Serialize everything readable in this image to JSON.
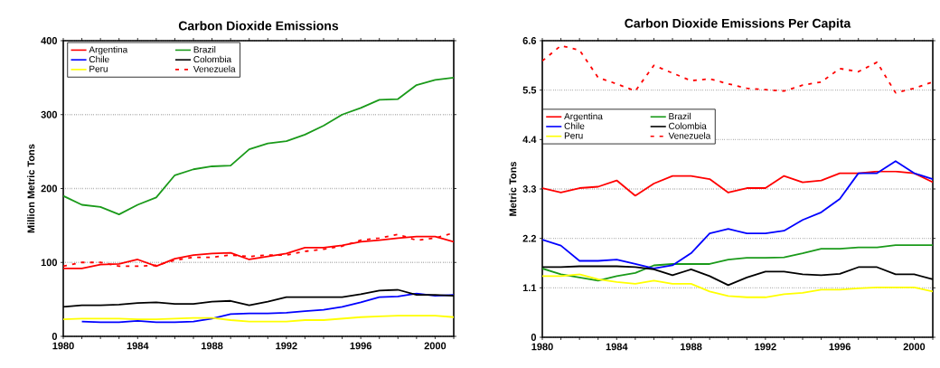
{
  "chart_data": [
    {
      "type": "line",
      "title": "Carbon Dioxide Emissions",
      "ylabel": "Million Metric Tons",
      "x": [
        1980,
        1981,
        1982,
        1983,
        1984,
        1985,
        1986,
        1987,
        1988,
        1989,
        1990,
        1991,
        1992,
        1993,
        1994,
        1995,
        1996,
        1997,
        1998,
        1999,
        2000,
        2001
      ],
      "series": [
        {
          "name": "Argentina",
          "color": "#ff0000",
          "values": [
            92,
            92,
            97,
            98,
            104,
            95,
            105,
            110,
            112,
            113,
            104,
            108,
            112,
            120,
            120,
            123,
            128,
            130,
            133,
            135,
            135,
            128
          ]
        },
        {
          "name": "Brazil",
          "color": "#1a9a1a",
          "values": [
            190,
            178,
            175,
            165,
            178,
            188,
            218,
            226,
            230,
            231,
            253,
            261,
            264,
            273,
            285,
            300,
            309,
            320,
            321,
            340,
            347,
            350
          ]
        },
        {
          "name": "Chile",
          "color": "#0000ff",
          "values": [
            null,
            20,
            19,
            19,
            21,
            19,
            19,
            20,
            24,
            30,
            31,
            31,
            32,
            34,
            36,
            40,
            46,
            53,
            54,
            58,
            55,
            56
          ]
        },
        {
          "name": "Colombia",
          "color": "#000000",
          "values": [
            40,
            42,
            42,
            43,
            45,
            46,
            44,
            44,
            47,
            48,
            42,
            47,
            53,
            53,
            53,
            53,
            57,
            62,
            63,
            56,
            56,
            55
          ]
        },
        {
          "name": "Peru",
          "color": "#ffff00",
          "values": [
            23,
            24,
            24,
            24,
            23,
            23,
            24,
            25,
            25,
            22,
            20,
            20,
            20,
            22,
            22,
            24,
            26,
            27,
            28,
            28,
            28,
            26
          ]
        },
        {
          "name": "Venezuela",
          "color": "#ff0000",
          "line_style": "dashed",
          "values": [
            95,
            100,
            100,
            95,
            95,
            96,
            103,
            107,
            107,
            110,
            108,
            110,
            110,
            115,
            118,
            122,
            130,
            133,
            138,
            130,
            133,
            140
          ]
        }
      ],
      "xlim": [
        1980,
        2001
      ],
      "ylim": [
        0,
        400
      ],
      "xticks": [
        1980,
        {
          "value": 1981,
          "label": null
        },
        {
          "value": 1982,
          "label": null
        },
        {
          "value": 1983,
          "label": null
        },
        1984,
        {
          "value": 1985,
          "label": null
        },
        {
          "value": 1986,
          "label": null
        },
        {
          "value": 1987,
          "label": null
        },
        1988,
        {
          "value": 1989,
          "label": null
        },
        {
          "value": 1990,
          "label": null
        },
        {
          "value": 1991,
          "label": null
        },
        1992,
        {
          "value": 1993,
          "label": null
        },
        {
          "value": 1994,
          "label": null
        },
        {
          "value": 1995,
          "label": null
        },
        1996,
        {
          "value": 1997,
          "label": null
        },
        {
          "value": 1998,
          "label": null
        },
        {
          "value": 1999,
          "label": null
        },
        2000,
        {
          "value": 2001,
          "label": null
        }
      ],
      "yticks": [
        0,
        100,
        200,
        300,
        400
      ],
      "grid": "y",
      "legend": "top left"
    },
    {
      "type": "line",
      "title": "Carbon Dioxide Emissions Per Capita",
      "ylabel": "Metric Tons",
      "x": [
        1980,
        1981,
        1982,
        1983,
        1984,
        1985,
        1986,
        1987,
        1988,
        1989,
        1990,
        1991,
        1992,
        1993,
        1994,
        1995,
        1996,
        1997,
        1998,
        1999,
        2000,
        2001
      ],
      "series": [
        {
          "name": "Argentina",
          "color": "#ff0000",
          "values": [
            3.32,
            3.22,
            3.32,
            3.35,
            3.49,
            3.15,
            3.42,
            3.59,
            3.59,
            3.52,
            3.22,
            3.32,
            3.32,
            3.59,
            3.45,
            3.49,
            3.65,
            3.65,
            3.69,
            3.69,
            3.65,
            3.45
          ]
        },
        {
          "name": "Brazil",
          "color": "#1a9a1a",
          "values": [
            1.53,
            1.4,
            1.33,
            1.26,
            1.36,
            1.43,
            1.6,
            1.63,
            1.63,
            1.63,
            1.73,
            1.77,
            1.77,
            1.78,
            1.87,
            1.97,
            1.97,
            2.0,
            2.0,
            2.05,
            2.05,
            2.05
          ]
        },
        {
          "name": "Chile",
          "color": "#0000ff",
          "values": [
            2.17,
            2.04,
            1.7,
            1.7,
            1.73,
            1.63,
            1.53,
            1.6,
            1.87,
            2.31,
            2.41,
            2.31,
            2.31,
            2.37,
            2.61,
            2.78,
            3.08,
            3.65,
            3.65,
            3.92,
            3.65,
            3.52
          ]
        },
        {
          "name": "Colombia",
          "color": "#000000",
          "values": [
            1.56,
            1.56,
            1.58,
            1.58,
            1.58,
            1.56,
            1.51,
            1.38,
            1.51,
            1.36,
            1.16,
            1.33,
            1.46,
            1.46,
            1.4,
            1.38,
            1.41,
            1.56,
            1.56,
            1.4,
            1.4,
            1.29
          ]
        },
        {
          "name": "Peru",
          "color": "#ffff00",
          "values": [
            1.36,
            1.36,
            1.4,
            1.29,
            1.23,
            1.19,
            1.26,
            1.19,
            1.19,
            1.02,
            0.92,
            0.89,
            0.89,
            0.96,
            0.99,
            1.06,
            1.06,
            1.09,
            1.11,
            1.11,
            1.11,
            1.02
          ]
        },
        {
          "name": "Venezuela",
          "color": "#ff0000",
          "line_style": "dashed",
          "values": [
            6.15,
            6.49,
            6.39,
            5.78,
            5.64,
            5.48,
            6.05,
            5.88,
            5.71,
            5.75,
            5.64,
            5.54,
            5.51,
            5.48,
            5.61,
            5.68,
            5.98,
            5.91,
            6.12,
            5.44,
            5.54,
            5.68
          ]
        }
      ],
      "xlim": [
        1980,
        2001
      ],
      "ylim": [
        0,
        6.6
      ],
      "xticks": [
        1980,
        {
          "value": 1981,
          "label": null
        },
        {
          "value": 1982,
          "label": null
        },
        {
          "value": 1983,
          "label": null
        },
        1984,
        {
          "value": 1985,
          "label": null
        },
        {
          "value": 1986,
          "label": null
        },
        {
          "value": 1987,
          "label": null
        },
        1988,
        {
          "value": 1989,
          "label": null
        },
        {
          "value": 1990,
          "label": null
        },
        {
          "value": 1991,
          "label": null
        },
        1992,
        {
          "value": 1993,
          "label": null
        },
        {
          "value": 1994,
          "label": null
        },
        {
          "value": 1995,
          "label": null
        },
        1996,
        {
          "value": 1997,
          "label": null
        },
        {
          "value": 1998,
          "label": null
        },
        {
          "value": 1999,
          "label": null
        },
        2000,
        {
          "value": 2001,
          "label": null
        }
      ],
      "yticks": [
        0,
        1.1,
        2.2,
        3.3,
        4.4,
        5.5,
        6.6
      ],
      "grid": "y",
      "legend": "left"
    }
  ]
}
